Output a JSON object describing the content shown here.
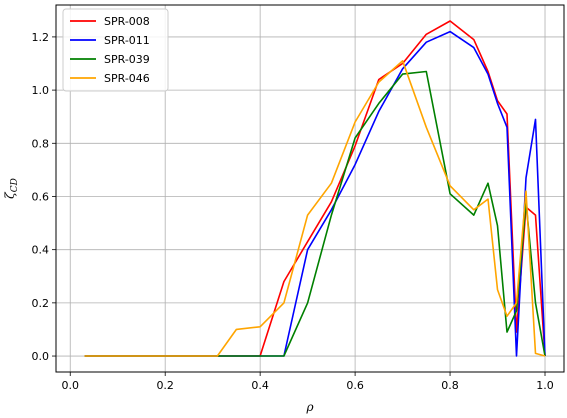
{
  "chart_data": {
    "type": "line",
    "title": "",
    "xlabel": "ρ",
    "ylabel": "ζ_CD",
    "xlim": [
      -0.03,
      1.04
    ],
    "ylim": [
      -0.06,
      1.32
    ],
    "xticks": [
      0.0,
      0.2,
      0.4,
      0.6,
      0.8,
      1.0
    ],
    "xtick_labels": [
      "0.0",
      "0.2",
      "0.4",
      "0.6",
      "0.8",
      "1.0"
    ],
    "yticks": [
      0.0,
      0.2,
      0.4,
      0.6,
      0.8,
      1.0,
      1.2
    ],
    "ytick_labels": [
      "0.0",
      "0.2",
      "0.4",
      "0.6",
      "0.8",
      "1.0",
      "1.2"
    ],
    "grid": true,
    "legend_position": "top-left",
    "series": [
      {
        "name": "SPR-008",
        "color": "#ff0000",
        "x": [
          0.03,
          0.4,
          0.45,
          0.5,
          0.55,
          0.6,
          0.65,
          0.7,
          0.75,
          0.8,
          0.85,
          0.88,
          0.9,
          0.92,
          0.94,
          0.96,
          0.98,
          1.0
        ],
        "y": [
          0.0,
          0.0,
          0.28,
          0.43,
          0.58,
          0.79,
          1.04,
          1.1,
          1.21,
          1.26,
          1.19,
          1.07,
          0.96,
          0.91,
          0.09,
          0.56,
          0.53,
          0.0
        ]
      },
      {
        "name": "SPR-011",
        "color": "#0000ff",
        "x": [
          0.03,
          0.45,
          0.5,
          0.55,
          0.6,
          0.65,
          0.7,
          0.75,
          0.8,
          0.85,
          0.88,
          0.9,
          0.92,
          0.94,
          0.96,
          0.98,
          1.0
        ],
        "y": [
          0.0,
          0.0,
          0.4,
          0.55,
          0.72,
          0.92,
          1.08,
          1.18,
          1.22,
          1.16,
          1.06,
          0.95,
          0.86,
          0.0,
          0.67,
          0.89,
          0.0
        ]
      },
      {
        "name": "SPR-039",
        "color": "#008000",
        "x": [
          0.03,
          0.45,
          0.5,
          0.55,
          0.6,
          0.65,
          0.7,
          0.75,
          0.8,
          0.85,
          0.88,
          0.9,
          0.92,
          0.94,
          0.96,
          0.98,
          1.0
        ],
        "y": [
          0.0,
          0.0,
          0.2,
          0.53,
          0.82,
          0.95,
          1.06,
          1.07,
          0.61,
          0.53,
          0.65,
          0.49,
          0.09,
          0.17,
          0.58,
          0.2,
          0.0
        ]
      },
      {
        "name": "SPR-046",
        "color": "#ffa500",
        "x": [
          0.03,
          0.31,
          0.35,
          0.4,
          0.45,
          0.5,
          0.55,
          0.6,
          0.65,
          0.7,
          0.75,
          0.8,
          0.85,
          0.88,
          0.9,
          0.92,
          0.94,
          0.96,
          0.98,
          1.0
        ],
        "y": [
          0.0,
          0.0,
          0.1,
          0.11,
          0.2,
          0.53,
          0.65,
          0.88,
          1.03,
          1.11,
          0.86,
          0.64,
          0.55,
          0.59,
          0.25,
          0.15,
          0.2,
          0.62,
          0.01,
          0.0
        ]
      }
    ]
  }
}
